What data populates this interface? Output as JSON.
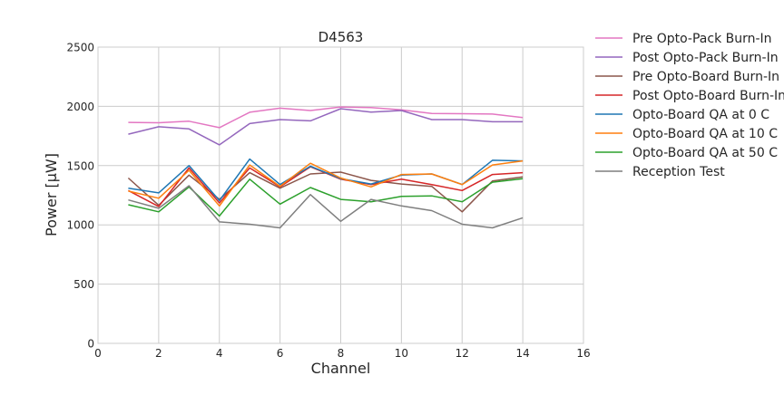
{
  "chart_data": {
    "type": "line",
    "title": "D4563",
    "xlabel": "Channel",
    "ylabel": "Power [μW]",
    "xlim": [
      0,
      16
    ],
    "ylim": [
      0,
      2500
    ],
    "xticks": [
      0,
      2,
      4,
      6,
      8,
      10,
      12,
      14,
      16
    ],
    "yticks": [
      0,
      500,
      1000,
      1500,
      2000,
      2500
    ],
    "grid": true,
    "legend_position": "outside-right",
    "x": [
      1,
      2,
      3,
      4,
      5,
      6,
      7,
      8,
      9,
      10,
      11,
      12,
      13,
      14
    ],
    "series": [
      {
        "name": "Pre Opto-Pack Burn-In",
        "color": "#e377c2",
        "values": [
          1865,
          1862,
          1875,
          1820,
          1950,
          1985,
          1965,
          1995,
          1990,
          1970,
          1940,
          1938,
          1935,
          1905
        ]
      },
      {
        "name": "Post Opto-Pack Burn-In",
        "color": "#9467bd",
        "values": [
          1765,
          1828,
          1810,
          1675,
          1855,
          1888,
          1878,
          1980,
          1952,
          1965,
          1888,
          1888,
          1870,
          1870
        ]
      },
      {
        "name": "Pre Opto-Board Burn-In",
        "color": "#8c564b",
        "values": [
          1395,
          1165,
          1420,
          1215,
          1440,
          1310,
          1430,
          1445,
          1375,
          1345,
          1325,
          1110,
          1370,
          1405
        ]
      },
      {
        "name": "Post Opto-Board Burn-In",
        "color": "#d62728",
        "values": [
          1290,
          1155,
          1480,
          1185,
          1480,
          1320,
          1490,
          1385,
          1340,
          1385,
          1340,
          1290,
          1425,
          1440
        ]
      },
      {
        "name": "Opto-Board QA at 0 C",
        "color": "#1f77b4",
        "values": [
          1310,
          1270,
          1500,
          1205,
          1555,
          1340,
          1495,
          1390,
          1345,
          1420,
          1430,
          1340,
          1545,
          1540
        ]
      },
      {
        "name": "Opto-Board QA at 10 C",
        "color": "#ff7f0e",
        "values": [
          1285,
          1225,
          1460,
          1160,
          1505,
          1325,
          1520,
          1395,
          1320,
          1425,
          1430,
          1340,
          1505,
          1540
        ]
      },
      {
        "name": "Opto-Board QA at 50 C",
        "color": "#2ca02c",
        "values": [
          1170,
          1110,
          1320,
          1075,
          1385,
          1175,
          1315,
          1215,
          1195,
          1240,
          1245,
          1195,
          1360,
          1390
        ]
      },
      {
        "name": "Reception Test",
        "color": "#7f7f7f",
        "values": [
          1210,
          1140,
          1330,
          1025,
          1005,
          975,
          1255,
          1030,
          1215,
          1160,
          1120,
          1005,
          975,
          1060
        ]
      }
    ]
  }
}
